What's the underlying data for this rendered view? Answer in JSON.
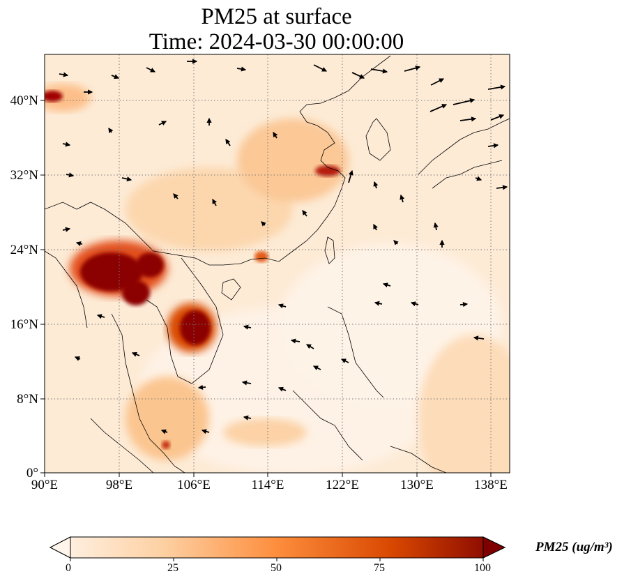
{
  "title": {
    "line1": "PM25 at surface",
    "line2": "Time: 2024-03-30 00:00:00"
  },
  "map": {
    "lon_range": [
      90,
      140
    ],
    "lat_range": [
      0,
      45
    ],
    "lon_ticks": [
      "90°E",
      "98°E",
      "106°E",
      "114°E",
      "122°E",
      "130°E",
      "138°E"
    ],
    "lat_ticks": [
      "0°",
      "8°N",
      "16°N",
      "24°N",
      "32°N",
      "40°N"
    ],
    "gridlines": true,
    "field": "PM25 concentration with surface wind vectors"
  },
  "colorbar": {
    "label": "PM25 (ug/m³)",
    "ticks": [
      "0",
      "25",
      "50",
      "75",
      "100"
    ],
    "range": [
      0,
      100
    ],
    "colormap": [
      "#fff5eb",
      "#fdd0a2",
      "#fd8d3c",
      "#d94801",
      "#7f0000"
    ]
  }
}
